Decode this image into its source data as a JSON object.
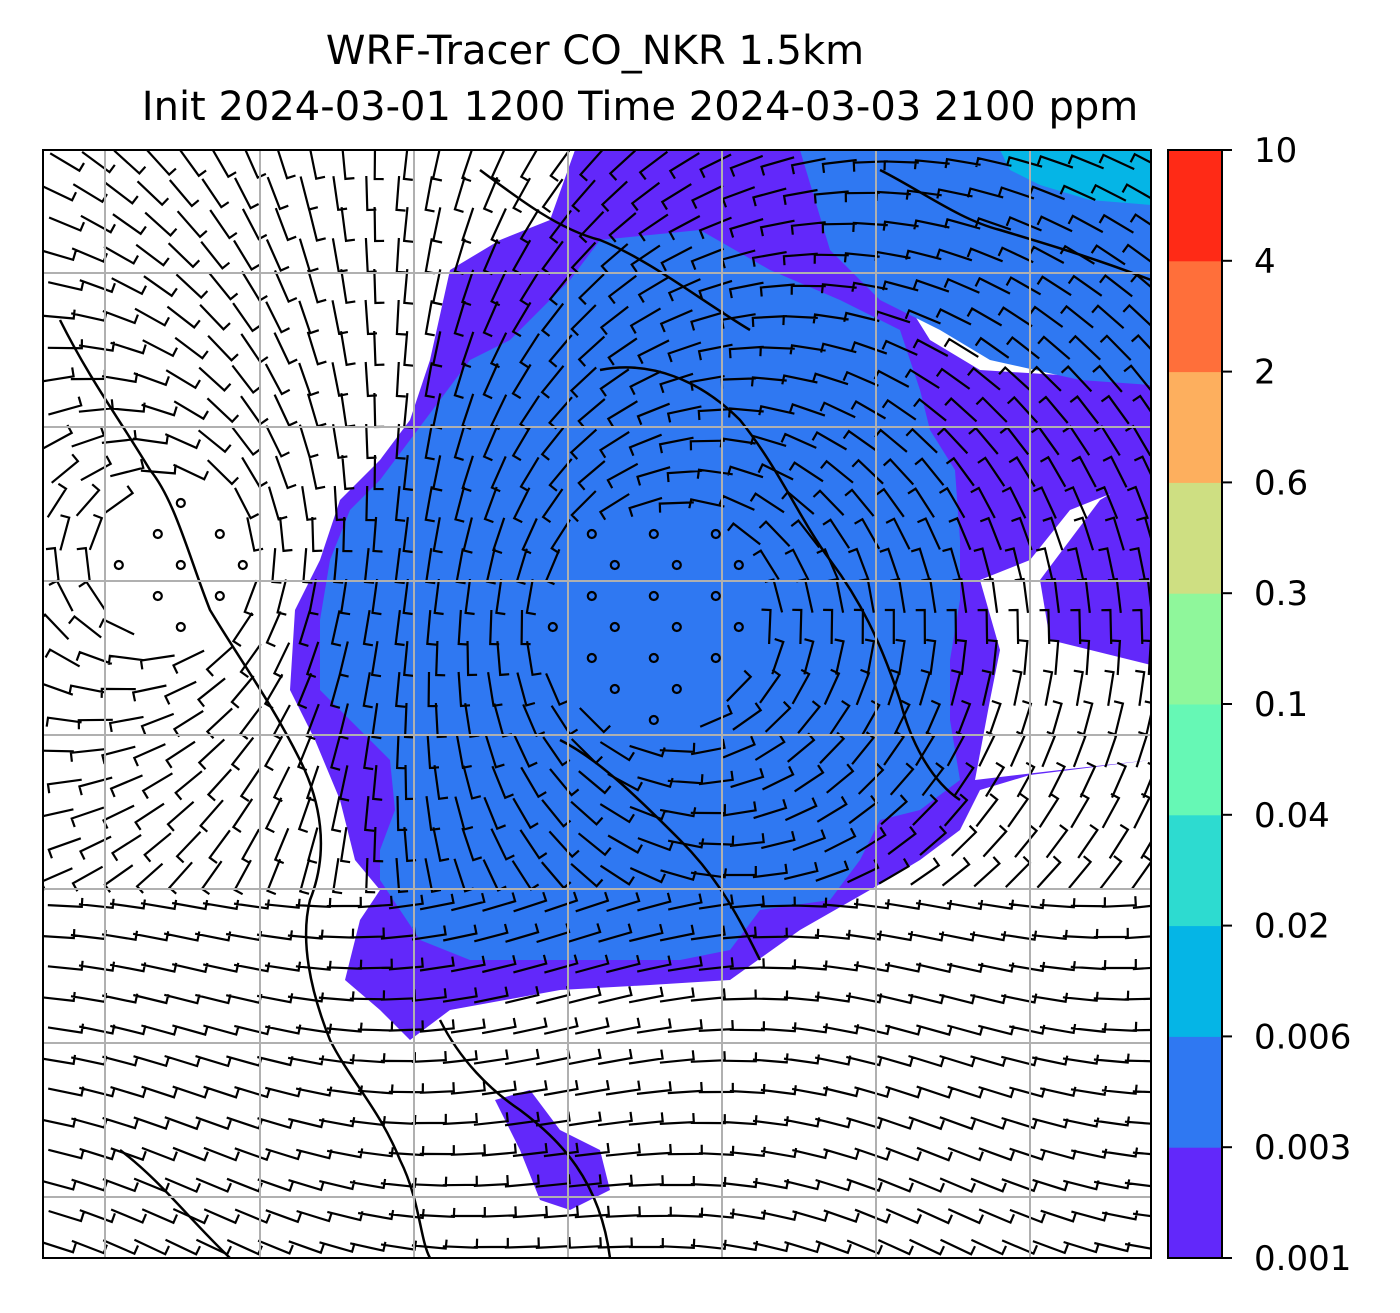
{
  "chart_data": {
    "type": "heatmap",
    "title": "WRF-Tracer CO_NKR 1.5km",
    "subtitle": "Init 2024-03-01 1200 Time 2024-03-03 2100 ppm",
    "colorbar": {
      "levels": [
        "0.001",
        "0.003",
        "0.006",
        "0.02",
        "0.04",
        "0.1",
        "0.3",
        "0.6",
        "2",
        "4",
        "10"
      ],
      "colors": [
        "#6228fa",
        "#2f78f2",
        "#05b5e6",
        "#2ddbd0",
        "#66f8b5",
        "#8ff79b",
        "#cedf82",
        "#fdaf5e",
        "#ff6f3a",
        "#ff2a16"
      ]
    },
    "field_regions": [
      {
        "level": "0.001",
        "description": "broad plume band",
        "color": "#6228fa"
      },
      {
        "level": "0.003",
        "description": "central plume",
        "color": "#2f78f2"
      },
      {
        "level": "0.006",
        "description": "northeast corner",
        "color": "#05b5e6"
      }
    ],
    "overlays": [
      "wind-barbs",
      "coastlines",
      "gridlines"
    ],
    "grid": true
  }
}
